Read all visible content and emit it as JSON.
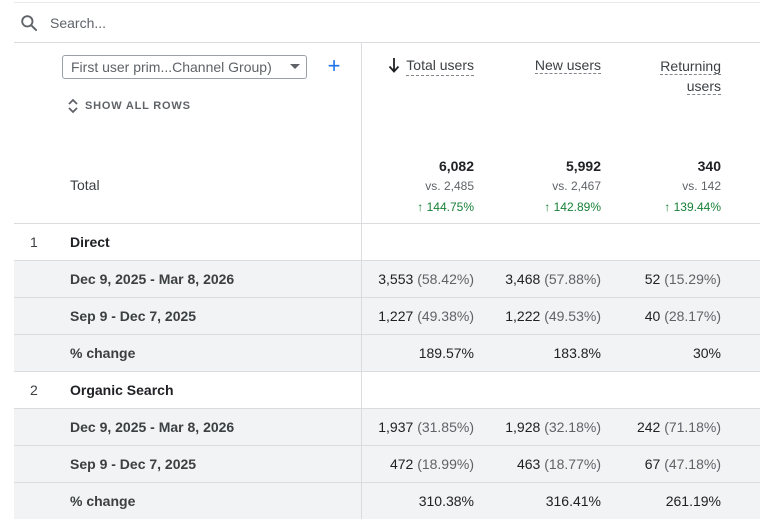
{
  "search": {
    "placeholder": "Search..."
  },
  "dimension": {
    "selected": "First user prim...Channel Group)",
    "add_label": "+"
  },
  "show_all_rows": "SHOW ALL ROWS",
  "columns": [
    {
      "line1": "Total users",
      "sorted": true
    },
    {
      "line1": "New users"
    },
    {
      "line1": "Returning",
      "line2": "users"
    }
  ],
  "totals": {
    "label": "Total",
    "values": [
      {
        "value": "6,082",
        "vs": "vs. 2,485",
        "change": "↑ 144.75%"
      },
      {
        "value": "5,992",
        "vs": "vs. 2,467",
        "change": "↑ 142.89%"
      },
      {
        "value": "340",
        "vs": "vs. 142",
        "change": "↑ 139.44%"
      }
    ]
  },
  "groups": [
    {
      "index": "1",
      "name": "Direct",
      "rows": [
        {
          "label": "Dec 9, 2025 - Mar 8, 2026",
          "cells": [
            {
              "v": "3,553",
              "p": "(58.42%)"
            },
            {
              "v": "3,468",
              "p": "(57.88%)"
            },
            {
              "v": "52",
              "p": "(15.29%)"
            }
          ]
        },
        {
          "label": "Sep 9 - Dec 7, 2025",
          "cells": [
            {
              "v": "1,227",
              "p": "(49.38%)"
            },
            {
              "v": "1,222",
              "p": "(49.53%)"
            },
            {
              "v": "40",
              "p": "(28.17%)"
            }
          ]
        },
        {
          "label": "% change",
          "cells": [
            {
              "v": "189.57%",
              "p": ""
            },
            {
              "v": "183.8%",
              "p": ""
            },
            {
              "v": "30%",
              "p": ""
            }
          ]
        }
      ]
    },
    {
      "index": "2",
      "name": "Organic Search",
      "rows": [
        {
          "label": "Dec 9, 2025 - Mar 8, 2026",
          "cells": [
            {
              "v": "1,937",
              "p": "(31.85%)"
            },
            {
              "v": "1,928",
              "p": "(32.18%)"
            },
            {
              "v": "242",
              "p": "(71.18%)"
            }
          ]
        },
        {
          "label": "Sep 9 - Dec 7, 2025",
          "cells": [
            {
              "v": "472",
              "p": "(18.99%)"
            },
            {
              "v": "463",
              "p": "(18.77%)"
            },
            {
              "v": "67",
              "p": "(47.18%)"
            }
          ]
        },
        {
          "label": "% change",
          "cells": [
            {
              "v": "310.38%",
              "p": ""
            },
            {
              "v": "316.41%",
              "p": ""
            },
            {
              "v": "261.19%",
              "p": ""
            }
          ]
        }
      ]
    }
  ],
  "colors": {
    "accent": "#1a73e8",
    "positive": "#188038",
    "row_shade": "#f1f3f4",
    "border": "#dadce0"
  }
}
